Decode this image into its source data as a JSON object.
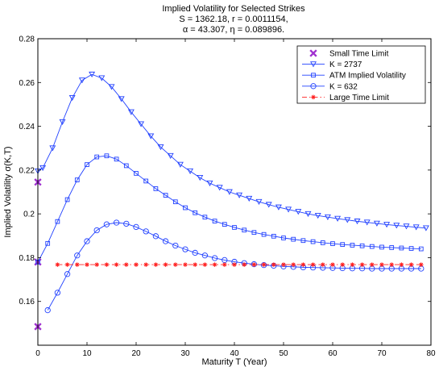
{
  "chart_data": {
    "type": "line",
    "title_lines": [
      "Implied Volatility for Selected Strikes",
      "S = 1362.18, r = 0.0011154,",
      "α = 43.307, η = 0.089896."
    ],
    "xlabel": "Maturity T (Year)",
    "ylabel": "Implied Volatility σ(K,T)",
    "xlim": [
      0,
      80
    ],
    "ylim": [
      0.14,
      0.28
    ],
    "x_ticks": [
      0,
      10,
      20,
      30,
      40,
      50,
      60,
      70,
      80
    ],
    "y_ticks": [
      0.16,
      0.18,
      0.2,
      0.22,
      0.24,
      0.26,
      0.28
    ],
    "y_tick_labels": [
      "0.16",
      "0.18",
      "0.2",
      "0.22",
      "0.24",
      "0.26",
      "0.28"
    ],
    "grid": false,
    "legend_position": "top-right",
    "series": [
      {
        "name": "Small Time Limit",
        "marker": "x",
        "line": "none",
        "color": "#a030d0",
        "x": [
          0,
          0,
          0
        ],
        "y": [
          0.2145,
          0.178,
          0.1485
        ]
      },
      {
        "name": "K = 2737",
        "marker": "triangle-down",
        "line": "solid",
        "color": "#2040ff",
        "x": [
          0,
          1,
          3,
          5,
          7,
          9,
          11,
          13,
          15,
          17,
          19,
          21,
          23,
          25,
          27,
          29,
          31,
          33,
          35,
          37,
          39,
          41,
          43,
          45,
          47,
          49,
          51,
          53,
          55,
          57,
          59,
          61,
          63,
          65,
          67,
          69,
          71,
          73,
          75,
          77,
          79
        ],
        "y": [
          0.2195,
          0.221,
          0.23,
          0.242,
          0.253,
          0.261,
          0.2637,
          0.262,
          0.258,
          0.2525,
          0.2465,
          0.241,
          0.2355,
          0.2305,
          0.2265,
          0.2225,
          0.2195,
          0.2165,
          0.214,
          0.212,
          0.21,
          0.2085,
          0.207,
          0.2055,
          0.2042,
          0.203,
          0.202,
          0.201,
          0.2,
          0.1992,
          0.1985,
          0.1978,
          0.1972,
          0.1966,
          0.1961,
          0.1956,
          0.1951,
          0.1947,
          0.1943,
          0.1939,
          0.1935
        ]
      },
      {
        "name": "ATM Implied Volatility",
        "marker": "square",
        "line": "solid",
        "color": "#2040ff",
        "x": [
          0,
          2,
          4,
          6,
          8,
          10,
          12,
          14,
          16,
          18,
          20,
          22,
          24,
          26,
          28,
          30,
          32,
          34,
          36,
          38,
          40,
          42,
          44,
          46,
          48,
          50,
          52,
          54,
          56,
          58,
          60,
          62,
          64,
          66,
          68,
          70,
          72,
          74,
          76,
          78
        ],
        "y": [
          0.178,
          0.1865,
          0.1965,
          0.2065,
          0.2155,
          0.2225,
          0.226,
          0.2265,
          0.225,
          0.222,
          0.2185,
          0.215,
          0.2115,
          0.2085,
          0.2055,
          0.2028,
          0.2005,
          0.1985,
          0.1967,
          0.1952,
          0.1938,
          0.1926,
          0.1915,
          0.1906,
          0.1898,
          0.189,
          0.1884,
          0.1878,
          0.1873,
          0.1868,
          0.1864,
          0.186,
          0.1857,
          0.1854,
          0.1851,
          0.1848,
          0.1846,
          0.1844,
          0.1842,
          0.184
        ]
      },
      {
        "name": "K = 632",
        "marker": "circle",
        "line": "solid",
        "color": "#2040ff",
        "x": [
          2,
          4,
          6,
          8,
          10,
          12,
          14,
          16,
          18,
          20,
          22,
          24,
          26,
          28,
          30,
          32,
          34,
          36,
          38,
          40,
          42,
          44,
          46,
          48,
          50,
          52,
          54,
          56,
          58,
          60,
          62,
          64,
          66,
          68,
          70,
          72,
          74,
          76,
          78
        ],
        "y": [
          0.156,
          0.164,
          0.1725,
          0.181,
          0.1875,
          0.1925,
          0.1952,
          0.196,
          0.1955,
          0.194,
          0.192,
          0.1898,
          0.1875,
          0.1855,
          0.1838,
          0.1822,
          0.181,
          0.1798,
          0.1789,
          0.1781,
          0.1775,
          0.177,
          0.1766,
          0.1763,
          0.176,
          0.1758,
          0.1756,
          0.1755,
          0.1754,
          0.1753,
          0.1752,
          0.1751,
          0.1751,
          0.175,
          0.175,
          0.175,
          0.175,
          0.175,
          0.175
        ]
      },
      {
        "name": "Large Time Limit",
        "marker": "asterisk",
        "line": "dash-dot",
        "color": "#ff2020",
        "x": [
          4,
          6,
          8,
          10,
          12,
          14,
          16,
          18,
          20,
          22,
          24,
          26,
          28,
          30,
          32,
          34,
          36,
          38,
          40,
          42,
          44,
          46,
          48,
          50,
          52,
          54,
          56,
          58,
          60,
          62,
          64,
          66,
          68,
          70,
          72,
          74,
          76,
          78
        ],
        "y": [
          0.1768,
          0.1768,
          0.1768,
          0.1768,
          0.1768,
          0.1768,
          0.1768,
          0.1768,
          0.1768,
          0.1768,
          0.1768,
          0.1768,
          0.1768,
          0.1768,
          0.1768,
          0.1768,
          0.1768,
          0.1768,
          0.1768,
          0.1768,
          0.1768,
          0.1768,
          0.1768,
          0.1768,
          0.1768,
          0.1768,
          0.1768,
          0.1768,
          0.1768,
          0.1768,
          0.1768,
          0.1768,
          0.1768,
          0.1768,
          0.1768,
          0.1768,
          0.1768,
          0.1768
        ]
      }
    ]
  }
}
